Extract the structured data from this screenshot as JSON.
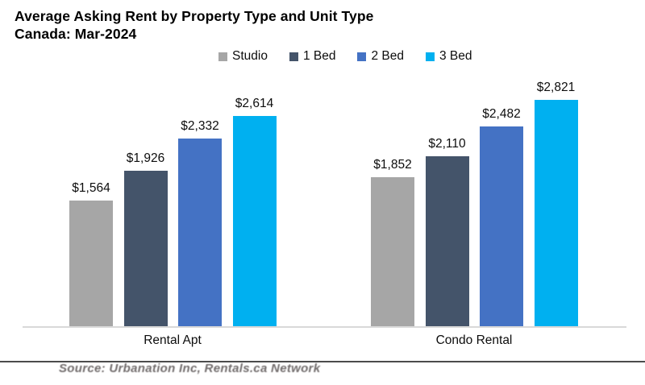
{
  "title": "Average Asking Rent by Property Type and Unit Type",
  "subtitle": "Canada: Mar-2024",
  "source_note": "Source: Urbanation Inc, Rentals.ca Network",
  "chart_data": {
    "type": "bar",
    "title": "Average Asking Rent by Property Type and Unit Type",
    "subtitle": "Canada: Mar-2024",
    "categories": [
      "Rental Apt",
      "Condo Rental"
    ],
    "series": [
      {
        "name": "Studio",
        "color": "#A6A6A6",
        "values": [
          1564,
          1852
        ]
      },
      {
        "name": "1 Bed",
        "color": "#44546A",
        "values": [
          1926,
          2110
        ]
      },
      {
        "name": "2 Bed",
        "color": "#4472C4",
        "values": [
          2332,
          2482
        ]
      },
      {
        "name": "3 Bed",
        "color": "#00B0F0",
        "values": [
          2614,
          2821
        ]
      }
    ],
    "value_prefix": "$",
    "ylabel": "",
    "xlabel": "",
    "ylim": [
      0,
      3050
    ],
    "grid": false,
    "legend_position": "top",
    "data_labels": true,
    "axis_line_color": "#D9D9D9",
    "source": "Source: Urbanation Inc, Rentals.ca Network"
  }
}
